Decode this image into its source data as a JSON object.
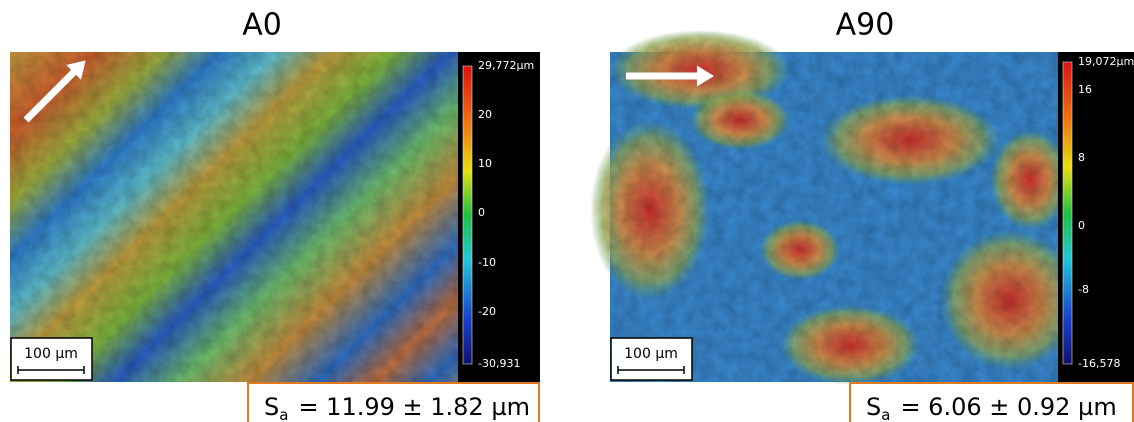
{
  "panels": [
    {
      "title": "A0",
      "colorbar": {
        "labels": [
          "29,772µm",
          "20",
          "10",
          "0",
          "-10",
          "-20",
          "-30,931"
        ]
      },
      "scale_bar": "100 µm",
      "sa": {
        "symbol": "S",
        "subscript": "a",
        "text": "= 11.99 ± 1.82 µm"
      }
    },
    {
      "title": "A90",
      "colorbar": {
        "labels": [
          "19,072µm",
          "16",
          "8",
          "0",
          "-8",
          "-16,578"
        ]
      },
      "scale_bar": "100 µm",
      "sa": {
        "symbol": "S",
        "subscript": "a",
        "text": "= 6.06 ± 0.92 µm"
      }
    }
  ]
}
